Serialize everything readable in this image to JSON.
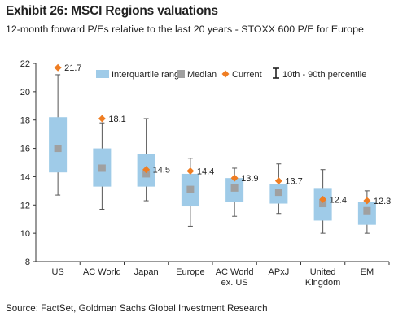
{
  "header": {
    "title": "Exhibit 26: MSCI Regions valuations",
    "subtitle": "12-month forward P/Es relative to the last 20 years - STOXX 600 P/E for Europe"
  },
  "footer": {
    "source": "Source: FactSet, Goldman Sachs Global Investment Research"
  },
  "colors": {
    "iqr": "#9fcbe8",
    "median": "#a0a0a0",
    "current": "#ef7d22",
    "whisker": "#555555"
  },
  "chart_data": {
    "type": "box",
    "ylim": [
      8,
      22
    ],
    "yticks": [
      8,
      10,
      12,
      14,
      16,
      18,
      20,
      22
    ],
    "legend": {
      "placement": "top",
      "items": [
        "Interquartile range",
        "Median",
        "Current",
        "10th - 90th percentile"
      ]
    },
    "categories": [
      {
        "label": [
          "US"
        ],
        "p10": 12.7,
        "q1": 14.3,
        "median": 16.0,
        "q3": 18.2,
        "p90": 21.2,
        "current": 21.7,
        "current_label": "21.7"
      },
      {
        "label": [
          "AC World"
        ],
        "p10": 11.7,
        "q1": 13.3,
        "median": 14.6,
        "q3": 16.0,
        "p90": 17.8,
        "current": 18.1,
        "current_label": "18.1"
      },
      {
        "label": [
          "Japan"
        ],
        "p10": 12.3,
        "q1": 13.3,
        "median": 14.2,
        "q3": 15.6,
        "p90": 18.1,
        "current": 14.5,
        "current_label": "14.5"
      },
      {
        "label": [
          "Europe"
        ],
        "p10": 10.5,
        "q1": 11.9,
        "median": 13.1,
        "q3": 14.2,
        "p90": 15.3,
        "current": 14.4,
        "current_label": "14.4"
      },
      {
        "label": [
          "AC World",
          "ex. US"
        ],
        "p10": 11.2,
        "q1": 12.2,
        "median": 13.2,
        "q3": 13.9,
        "p90": 14.6,
        "current": 13.9,
        "current_label": "13.9"
      },
      {
        "label": [
          "APxJ"
        ],
        "p10": 11.4,
        "q1": 12.1,
        "median": 12.9,
        "q3": 13.5,
        "p90": 14.9,
        "current": 13.7,
        "current_label": "13.7"
      },
      {
        "label": [
          "United",
          "Kingdom"
        ],
        "p10": 10.0,
        "q1": 10.9,
        "median": 12.1,
        "q3": 13.2,
        "p90": 14.5,
        "current": 12.4,
        "current_label": "12.4"
      },
      {
        "label": [
          "EM"
        ],
        "p10": 10.0,
        "q1": 10.6,
        "median": 11.6,
        "q3": 12.2,
        "p90": 13.0,
        "current": 12.3,
        "current_label": "12.3"
      }
    ]
  }
}
